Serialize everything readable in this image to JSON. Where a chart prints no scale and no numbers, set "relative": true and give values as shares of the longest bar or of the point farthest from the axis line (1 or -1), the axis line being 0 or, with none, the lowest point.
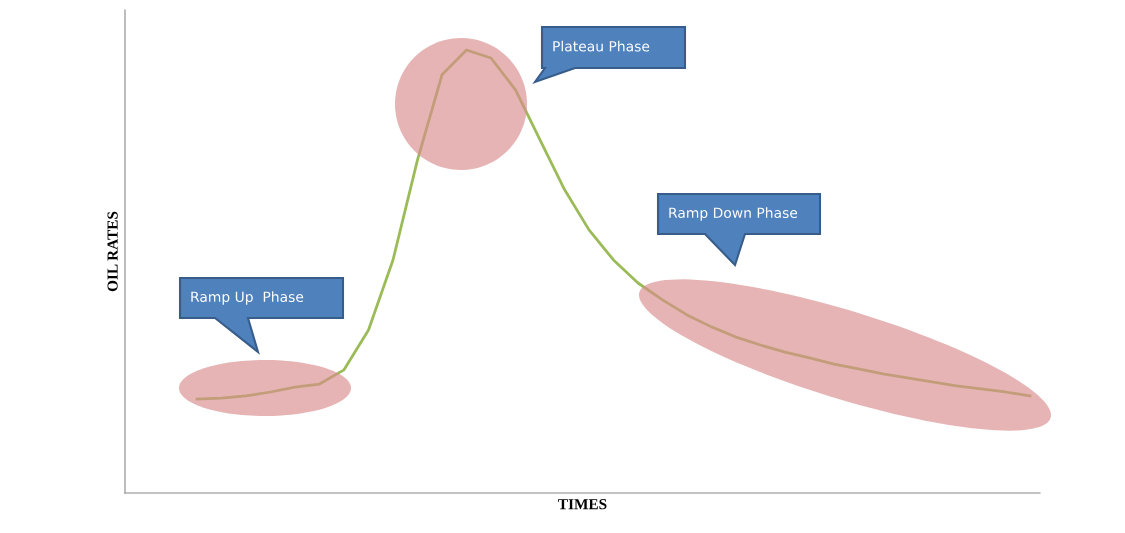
{
  "chart_data": {
    "type": "line",
    "relative": true,
    "xlabel": "TIMES",
    "ylabel": "OIL RATES",
    "categories": [
      null,
      null,
      null,
      null,
      null,
      null,
      null,
      null,
      null,
      null,
      null,
      null,
      null,
      null,
      null,
      null,
      null,
      null,
      null,
      null,
      null,
      null,
      null,
      null,
      null,
      null,
      null,
      null,
      null,
      null,
      null,
      null,
      null,
      null,
      null
    ],
    "series": [
      {
        "color": "#9bbb59",
        "values": [
          0.212,
          0.214,
          0.219,
          0.228,
          0.239,
          0.246,
          0.278,
          0.368,
          0.526,
          0.752,
          0.944,
          1.0,
          0.982,
          0.91,
          0.797,
          0.685,
          0.594,
          0.526,
          0.474,
          0.436,
          0.402,
          0.375,
          0.352,
          0.334,
          0.318,
          0.305,
          0.291,
          0.28,
          0.269,
          0.26,
          0.251,
          0.242,
          0.235,
          0.228,
          0.219
        ]
      }
    ],
    "annotations": [
      "Ramp Up  Phase",
      "Plateau Phase",
      "Ramp Down Phase"
    ],
    "grid": false,
    "legend": false,
    "tick_labels": false,
    "marker": "none",
    "line_style": "solid"
  }
}
